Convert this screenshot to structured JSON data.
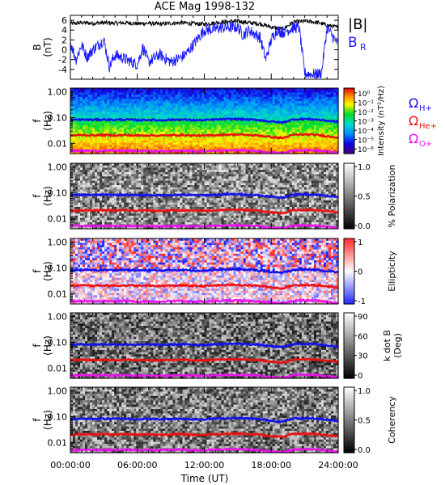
{
  "title": "ACE Mag 1998-132",
  "xlabel": "Time (UT)",
  "x_ticks": [
    "00:00:00",
    "06:00:00",
    "12:00:00",
    "18:00:00",
    "24:00:00"
  ],
  "colors": {
    "total_field": "#000000",
    "radial_field": "#1a1aff",
    "h_plus": "#1010ee",
    "he_plus": "#ee1010",
    "o_plus": "#ee10ee"
  },
  "legends": {
    "total_field": "|B|",
    "radial_field_main": "B",
    "radial_field_sub": "R",
    "gyro_h_main": "Ω",
    "gyro_h_sub": "H+",
    "gyro_he_main": "Ω",
    "gyro_he_sub": "He+",
    "gyro_o_main": "Ω",
    "gyro_o_sub": "O+"
  },
  "chart_data": [
    {
      "type": "line",
      "ylabel": "B",
      "yunit": "(nT)",
      "ylim": [
        -6,
        7
      ],
      "y_ticks": [
        "6",
        "4",
        "2",
        "0",
        "-2",
        "-4"
      ],
      "x_range_hours": [
        0,
        24
      ],
      "series": [
        {
          "name": "|B|",
          "color_key": "total_field",
          "x": [
            0,
            1,
            2,
            3,
            4,
            5,
            6,
            7,
            8,
            9,
            10,
            11,
            12,
            13,
            14,
            15,
            16,
            17,
            18,
            19,
            20,
            21,
            22,
            23,
            24
          ],
          "values": [
            5.3,
            5.5,
            5.4,
            5.5,
            5.4,
            5.5,
            5.3,
            5.4,
            5.2,
            5.4,
            5.5,
            5.3,
            5.2,
            5.5,
            5.7,
            5.8,
            5.5,
            5.3,
            4.6,
            4.2,
            5.6,
            5.8,
            5.6,
            5.0,
            4.5
          ]
        },
        {
          "name": "B_R",
          "color_key": "radial_field",
          "x": [
            0,
            0.5,
            1,
            1.5,
            2,
            3,
            3.5,
            4,
            5,
            6,
            6.5,
            7,
            8,
            9,
            10,
            10.5,
            11,
            12,
            13,
            13.5,
            14,
            15,
            15.5,
            16,
            17,
            17.5,
            18,
            18.5,
            19,
            20,
            20.5,
            21,
            21.5,
            22,
            22.5,
            23,
            24
          ],
          "values": [
            1.5,
            -2.0,
            1.0,
            -1.5,
            0.0,
            2.0,
            -3.5,
            -1.0,
            -2.0,
            -3.0,
            0.5,
            -2.5,
            -1.0,
            -2.5,
            -1.5,
            -0.5,
            1.0,
            4.0,
            4.2,
            4.5,
            4.5,
            4.6,
            3.0,
            4.0,
            2.5,
            -2.0,
            2.0,
            4.0,
            3.5,
            4.5,
            4.5,
            -4.8,
            -5.0,
            -5.0,
            -4.8,
            4.5,
            1.0
          ]
        }
      ]
    },
    {
      "type": "heatmap",
      "ylabel": "f",
      "yunit": "(Hz)",
      "yscale": "log",
      "ylim": [
        0.004,
        1.4
      ],
      "y_ticks": [
        "1.00",
        "0.10",
        "0.01"
      ],
      "colorbar_label": "Intensity (nT²/Hz)",
      "colorbar_ticks": [
        "10⁰",
        "10⁻¹",
        "10⁻²",
        "10⁻³",
        "10⁻⁴",
        "10⁻⁵",
        "10⁻⁶"
      ],
      "colorbar_range_log": [
        -6.5,
        0.5
      ],
      "colormap": "rainbow"
    },
    {
      "type": "heatmap",
      "ylabel": "f",
      "yunit": "(Hz)",
      "yscale": "log",
      "ylim": [
        0.004,
        1.4
      ],
      "y_ticks": [
        "1.00",
        "0.10",
        "0.01"
      ],
      "colorbar_label": "% Polarization",
      "colorbar_ticks": [
        "1.0",
        "0.5",
        "0.0"
      ],
      "colorbar_range": [
        0,
        1
      ],
      "colormap": "gray"
    },
    {
      "type": "heatmap",
      "ylabel": "f",
      "yunit": "(Hz)",
      "yscale": "log",
      "ylim": [
        0.004,
        1.4
      ],
      "y_ticks": [
        "1.00",
        "0.10",
        "0.01"
      ],
      "colorbar_label": "Ellipticity",
      "colorbar_ticks": [
        "1",
        "0",
        "-1"
      ],
      "colorbar_range": [
        -1,
        1
      ],
      "colormap": "blue-white-red"
    },
    {
      "type": "heatmap",
      "ylabel": "f",
      "yunit": "(Hz)",
      "yscale": "log",
      "ylim": [
        0.004,
        1.4
      ],
      "y_ticks": [
        "1.00",
        "0.10",
        "0.01"
      ],
      "colorbar_label": "k dot B",
      "colorbar_unit": "(Deg)",
      "colorbar_ticks": [
        "90",
        "60",
        "30",
        "0"
      ],
      "colorbar_range": [
        0,
        90
      ],
      "colormap": "gray"
    },
    {
      "type": "heatmap",
      "ylabel": "f",
      "yunit": "(Hz)",
      "yscale": "log",
      "ylim": [
        0.004,
        1.4
      ],
      "y_ticks": [
        "1.00",
        "0.10",
        "0.01"
      ],
      "colorbar_label": "Coherency",
      "colorbar_ticks": [
        "1.0",
        "0.5",
        "0.0"
      ],
      "colorbar_range": [
        0,
        1
      ],
      "colormap": "gray"
    }
  ],
  "gyrofrequency_lines": {
    "x": [
      0,
      1,
      2,
      3,
      4,
      5,
      6,
      7,
      8,
      9,
      10,
      11,
      12,
      13,
      14,
      15,
      16,
      17,
      18,
      19,
      20,
      21,
      22,
      23,
      24
    ],
    "h_plus_hz": [
      0.08,
      0.084,
      0.082,
      0.084,
      0.082,
      0.084,
      0.08,
      0.082,
      0.079,
      0.082,
      0.084,
      0.08,
      0.079,
      0.084,
      0.087,
      0.088,
      0.084,
      0.08,
      0.07,
      0.064,
      0.085,
      0.088,
      0.085,
      0.076,
      0.068
    ],
    "he_plus_hz": [
      0.02,
      0.021,
      0.0205,
      0.021,
      0.0205,
      0.021,
      0.02,
      0.0205,
      0.0198,
      0.0205,
      0.021,
      0.02,
      0.0198,
      0.021,
      0.0218,
      0.022,
      0.021,
      0.02,
      0.0175,
      0.016,
      0.0213,
      0.022,
      0.0213,
      0.019,
      0.017
    ],
    "o_plus_hz": [
      0.005,
      0.0052,
      0.0051,
      0.0052,
      0.0051,
      0.0052,
      0.005,
      0.0051,
      0.0049,
      0.0051,
      0.0052,
      0.005,
      0.0049,
      0.0052,
      0.0054,
      0.0055,
      0.0052,
      0.005,
      0.0044,
      0.004,
      0.0053,
      0.0055,
      0.0053,
      0.0048,
      0.0043
    ]
  }
}
